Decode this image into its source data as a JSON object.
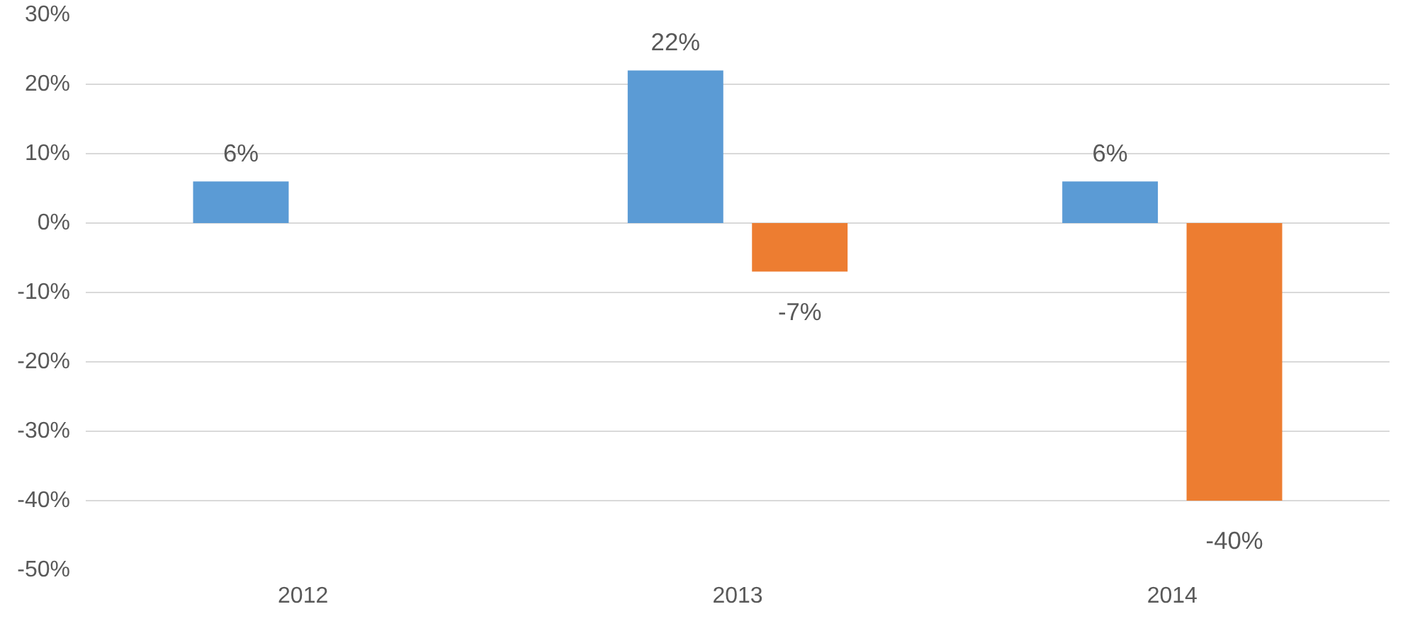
{
  "chart_data": {
    "type": "bar",
    "categories": [
      "2012",
      "2013",
      "2014"
    ],
    "series": [
      {
        "color": "#5b9bd5",
        "values": [
          6,
          22,
          6
        ],
        "value_labels": [
          "6%",
          "22%",
          "6%"
        ]
      },
      {
        "color": "#ed7d31",
        "values": [
          null,
          -7,
          -40
        ],
        "value_labels": [
          null,
          "-7%",
          "-40%"
        ]
      }
    ],
    "ylim": [
      -50,
      30
    ],
    "yticks": [
      {
        "value": 30,
        "label": "30%"
      },
      {
        "value": 20,
        "label": "20%"
      },
      {
        "value": 10,
        "label": "10%"
      },
      {
        "value": 0,
        "label": "0%"
      },
      {
        "value": -10,
        "label": "-10%"
      },
      {
        "value": -20,
        "label": "-20%"
      },
      {
        "value": -30,
        "label": "-30%"
      },
      {
        "value": -40,
        "label": "-40%"
      },
      {
        "value": -50,
        "label": "-50%"
      }
    ],
    "grid": "y"
  }
}
